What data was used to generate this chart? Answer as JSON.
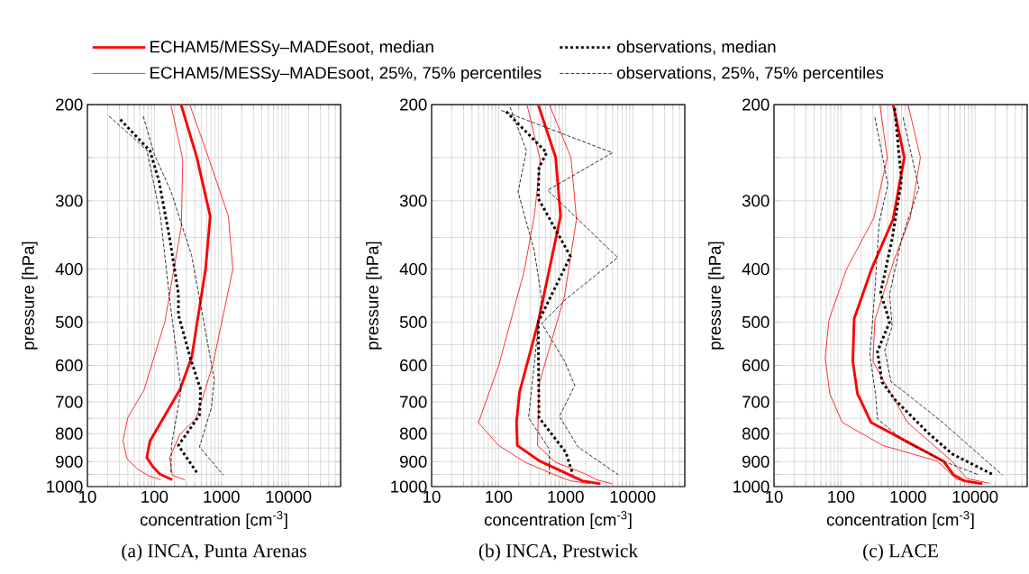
{
  "chart_data": [
    {
      "type": "line",
      "title": "(a) INCA, Punta Arenas",
      "xlabel": "concentration [cm$^{-3}$]",
      "ylabel": "pressure [hPa]",
      "log": "xy",
      "grid": true,
      "legend": "top",
      "xlim": [
        10,
        60000
      ],
      "ylim": [
        1000,
        200
      ],
      "xticks": [
        10,
        {
          "value": 20,
          "label": null
        },
        {
          "value": 30,
          "label": null
        },
        {
          "value": 40,
          "label": null
        },
        {
          "value": 50,
          "label": null
        },
        {
          "value": 60,
          "label": null
        },
        {
          "value": 70,
          "label": null
        },
        {
          "value": 80,
          "label": null
        },
        {
          "value": 90,
          "label": null
        },
        100,
        {
          "value": 200,
          "label": null
        },
        {
          "value": 300,
          "label": null
        },
        {
          "value": 400,
          "label": null
        },
        {
          "value": 500,
          "label": null
        },
        {
          "value": 600,
          "label": null
        },
        {
          "value": 700,
          "label": null
        },
        {
          "value": 800,
          "label": null
        },
        {
          "value": 900,
          "label": null
        },
        1000,
        {
          "value": 2000,
          "label": null
        },
        {
          "value": 3000,
          "label": null
        },
        {
          "value": 4000,
          "label": null
        },
        {
          "value": 5000,
          "label": null
        },
        {
          "value": 6000,
          "label": null
        },
        {
          "value": 7000,
          "label": null
        },
        {
          "value": 8000,
          "label": null
        },
        {
          "value": 9000,
          "label": null
        },
        10000,
        {
          "value": 20000,
          "label": null
        },
        {
          "value": 30000,
          "label": null
        },
        {
          "value": 40000,
          "label": null
        },
        {
          "value": 50000,
          "label": null
        },
        {
          "value": 60000,
          "label": null
        }
      ],
      "yticks": [
        200,
        {
          "value": 250,
          "label": null
        },
        300,
        {
          "value": 350,
          "label": null
        },
        400,
        {
          "value": 450,
          "label": null
        },
        500,
        {
          "value": 550,
          "label": null
        },
        600,
        {
          "value": 650,
          "label": null
        },
        700,
        {
          "value": 750,
          "label": null
        },
        800,
        {
          "value": 850,
          "label": null
        },
        900,
        {
          "value": 950,
          "label": null
        },
        1000
      ],
      "series": [
        {
          "name": "ECHAM5/MESSy–MADEsoot, median",
          "color": "#ff0000",
          "line_style": "solid",
          "x": [
            250,
            430,
            680,
            580,
            360,
            240,
            86,
            77,
            95,
            120,
            185
          ],
          "values": [
            200,
            250,
            320,
            400,
            580,
            665,
            825,
            885,
            920,
            948,
            972
          ]
        },
        {
          "name": "ECHAM5/MESSy–MADEsoot, 25%, 75% percentiles",
          "color": "#ff0000",
          "line_style": "solid",
          "x": [
            176,
            265,
            252,
            143,
            70,
            40,
            34,
            39,
            57,
            81,
            125
          ],
          "values": [
            200,
            252,
            334,
            500,
            665,
            748,
            825,
            890,
            930,
            955,
            972
          ]
        },
        {
          "color": "#ff0000",
          "line_style": "solid",
          "x": [
            336,
            640,
            1270,
            1480,
            740,
            420,
            240,
            170,
            185,
            285
          ],
          "values": [
            200,
            250,
            320,
            400,
            600,
            750,
            802,
            885,
            953,
            972
          ]
        },
        {
          "name": "observations, median",
          "color": "#000000",
          "line_style": "dotted",
          "x": [
            31,
            86,
            117,
            170,
            228,
            228,
            343,
            490,
            470,
            228,
            444
          ],
          "values": [
            213,
            243,
            276,
            353,
            443,
            485,
            581,
            665,
            740,
            841,
            948
          ]
        },
        {
          "name": "observations, 25%, 75% percentiles",
          "color": "#000000",
          "line_style": "dashed",
          "x": [
            21,
            77,
            123,
            167,
            250,
            180,
            176
          ],
          "values": [
            210,
            242,
            320,
            449,
            665,
            841,
            948
          ]
        },
        {
          "color": "#000000",
          "line_style": "dashed",
          "x": [
            68,
            100,
            176,
            360,
            780,
            710,
            470,
            1070
          ],
          "values": [
            210,
            247,
            288,
            378,
            636,
            717,
            846,
            953
          ]
        }
      ]
    },
    {
      "type": "line",
      "title": "(b) INCA, Prestwick",
      "xlabel": "concentration [cm$^{-3}$]",
      "ylabel": "pressure [hPa]",
      "log": "xy",
      "grid": true,
      "xlim": [
        10,
        60000
      ],
      "ylim": [
        1000,
        200
      ],
      "xticks": [
        10,
        {
          "value": 20,
          "label": null
        },
        {
          "value": 30,
          "label": null
        },
        {
          "value": 40,
          "label": null
        },
        {
          "value": 50,
          "label": null
        },
        {
          "value": 60,
          "label": null
        },
        {
          "value": 70,
          "label": null
        },
        {
          "value": 80,
          "label": null
        },
        {
          "value": 90,
          "label": null
        },
        100,
        {
          "value": 200,
          "label": null
        },
        {
          "value": 300,
          "label": null
        },
        {
          "value": 400,
          "label": null
        },
        {
          "value": 500,
          "label": null
        },
        {
          "value": 600,
          "label": null
        },
        {
          "value": 700,
          "label": null
        },
        {
          "value": 800,
          "label": null
        },
        {
          "value": 900,
          "label": null
        },
        1000,
        {
          "value": 2000,
          "label": null
        },
        {
          "value": 3000,
          "label": null
        },
        {
          "value": 4000,
          "label": null
        },
        {
          "value": 5000,
          "label": null
        },
        {
          "value": 6000,
          "label": null
        },
        {
          "value": 7000,
          "label": null
        },
        {
          "value": 8000,
          "label": null
        },
        {
          "value": 9000,
          "label": null
        },
        10000,
        {
          "value": 20000,
          "label": null
        },
        {
          "value": 30000,
          "label": null
        },
        {
          "value": 40000,
          "label": null
        },
        {
          "value": 50000,
          "label": null
        },
        {
          "value": 60000,
          "label": null
        }
      ],
      "yticks": [
        200,
        {
          "value": 250,
          "label": null
        },
        300,
        {
          "value": 350,
          "label": null
        },
        400,
        {
          "value": 450,
          "label": null
        },
        500,
        {
          "value": 550,
          "label": null
        },
        600,
        {
          "value": 650,
          "label": null
        },
        700,
        {
          "value": 750,
          "label": null
        },
        800,
        {
          "value": 850,
          "label": null
        },
        900,
        {
          "value": 950,
          "label": null
        },
        1000
      ],
      "series": [
        {
          "color": "#ff0000",
          "line_style": "solid",
          "x": [
            390,
            710,
            840,
            390,
            205,
            185,
            190,
            410,
            1780,
            3300
          ],
          "values": [
            200,
            250,
            320,
            500,
            672,
            761,
            841,
            898,
            976,
            988
          ]
        },
        {
          "color": "#ff0000",
          "line_style": "solid",
          "x": [
            265,
            420,
            340,
            240,
            100,
            50,
            100,
            250,
            640,
            1180,
            2370
          ],
          "values": [
            200,
            253,
            320,
            404,
            601,
            764,
            841,
            903,
            948,
            976,
            988
          ]
        },
        {
          "color": "#ff0000",
          "line_style": "solid",
          "x": [
            570,
            1200,
            1450,
            960,
            400,
            380,
            710,
            1970,
            3000,
            5000
          ],
          "values": [
            200,
            250,
            324,
            449,
            650,
            841,
            903,
            948,
            973,
            988
          ]
        },
        {
          "color": "#000000",
          "line_style": "dotted",
          "x": [
            130,
            520,
            400,
            390,
            1180,
            390,
            400,
            1010,
            1280
          ],
          "values": [
            206,
            245,
            261,
            297,
            379,
            500,
            748,
            866,
            950
          ]
        },
        {
          "color": "#000000",
          "line_style": "dashed",
          "x": [
            148,
            260,
            195,
            340,
            440,
            390,
            280,
            570,
            570
          ],
          "values": [
            202,
            243,
            289,
            370,
            454,
            509,
            748,
            854,
            951
          ]
        },
        {
          "color": "#000000",
          "line_style": "dashed",
          "x": [
            110,
            5000,
            540,
            6000,
            1010,
            440,
            960,
            1370,
            810,
            1530,
            6100
          ],
          "values": [
            205,
            245,
            287,
            381,
            454,
            503,
            589,
            653,
            744,
            846,
            951
          ]
        }
      ]
    },
    {
      "type": "line",
      "title": "(c) LACE",
      "xlabel": "concentration [cm$^{-3}$]",
      "ylabel": "pressure [hPa]",
      "log": "xy",
      "grid": true,
      "xlim": [
        10,
        60000
      ],
      "ylim": [
        1000,
        200
      ],
      "xticks": [
        10,
        {
          "value": 20,
          "label": null
        },
        {
          "value": 30,
          "label": null
        },
        {
          "value": 40,
          "label": null
        },
        {
          "value": 50,
          "label": null
        },
        {
          "value": 60,
          "label": null
        },
        {
          "value": 70,
          "label": null
        },
        {
          "value": 80,
          "label": null
        },
        {
          "value": 90,
          "label": null
        },
        100,
        {
          "value": 200,
          "label": null
        },
        {
          "value": 300,
          "label": null
        },
        {
          "value": 400,
          "label": null
        },
        {
          "value": 500,
          "label": null
        },
        {
          "value": 600,
          "label": null
        },
        {
          "value": 700,
          "label": null
        },
        {
          "value": 800,
          "label": null
        },
        {
          "value": 900,
          "label": null
        },
        1000,
        {
          "value": 2000,
          "label": null
        },
        {
          "value": 3000,
          "label": null
        },
        {
          "value": 4000,
          "label": null
        },
        {
          "value": 5000,
          "label": null
        },
        {
          "value": 6000,
          "label": null
        },
        {
          "value": 7000,
          "label": null
        },
        {
          "value": 8000,
          "label": null
        },
        {
          "value": 9000,
          "label": null
        },
        10000,
        {
          "value": 20000,
          "label": null
        },
        {
          "value": 30000,
          "label": null
        },
        {
          "value": 40000,
          "label": null
        },
        {
          "value": 50000,
          "label": null
        },
        {
          "value": 60000,
          "label": null
        }
      ],
      "yticks": [
        200,
        {
          "value": 250,
          "label": null
        },
        300,
        {
          "value": 350,
          "label": null
        },
        400,
        {
          "value": 450,
          "label": null
        },
        500,
        {
          "value": 550,
          "label": null
        },
        600,
        {
          "value": 650,
          "label": null
        },
        700,
        {
          "value": 750,
          "label": null
        },
        800,
        {
          "value": 850,
          "label": null
        },
        900,
        {
          "value": 950,
          "label": null
        },
        1000
      ],
      "series": [
        {
          "color": "#ff0000",
          "line_style": "solid",
          "x": [
            600,
            880,
            600,
            285,
            157,
            150,
            176,
            280,
            3360,
            4800,
            6900,
            12800
          ],
          "values": [
            200,
            250,
            324,
            400,
            493,
            590,
            676,
            763,
            898,
            952,
            976,
            988
          ]
        },
        {
          "color": "#ff0000",
          "line_style": "solid",
          "x": [
            380,
            490,
            310,
            120,
            66,
            58,
            68,
            104,
            420,
            2740,
            5300,
            12800
          ],
          "values": [
            200,
            250,
            322,
            401,
            496,
            581,
            676,
            763,
            841,
            898,
            970,
            986
          ]
        },
        {
          "color": "#ff0000",
          "line_style": "solid",
          "x": [
            1000,
            1530,
            1080,
            620,
            320,
            300,
            430,
            980,
            4500,
            7600,
            16500
          ],
          "values": [
            200,
            250,
            322,
            385,
            496,
            590,
            640,
            763,
            898,
            967,
            986
          ]
        },
        {
          "color": "#000000",
          "line_style": "dotted",
          "x": [
            630,
            800,
            580,
            390,
            530,
            350,
            410,
            650,
            2000,
            4600,
            18900
          ],
          "values": [
            203,
            275,
            352,
            442,
            500,
            566,
            644,
            695,
            798,
            872,
            952
          ]
        },
        {
          "color": "#000000",
          "line_style": "dashed",
          "x": [
            320,
            500,
            370,
            320,
            270,
            330,
            350,
            880,
            3300,
            11500
          ],
          "values": [
            211,
            280,
            329,
            438,
            574,
            683,
            752,
            825,
            898,
            952
          ]
        },
        {
          "color": "#000000",
          "line_style": "dashed",
          "x": [
            840,
            1450,
            800,
            530,
            580,
            450,
            560,
            800,
            3000,
            25600
          ],
          "values": [
            211,
            284,
            353,
            445,
            509,
            563,
            644,
            665,
            756,
            952
          ]
        }
      ]
    }
  ]
}
